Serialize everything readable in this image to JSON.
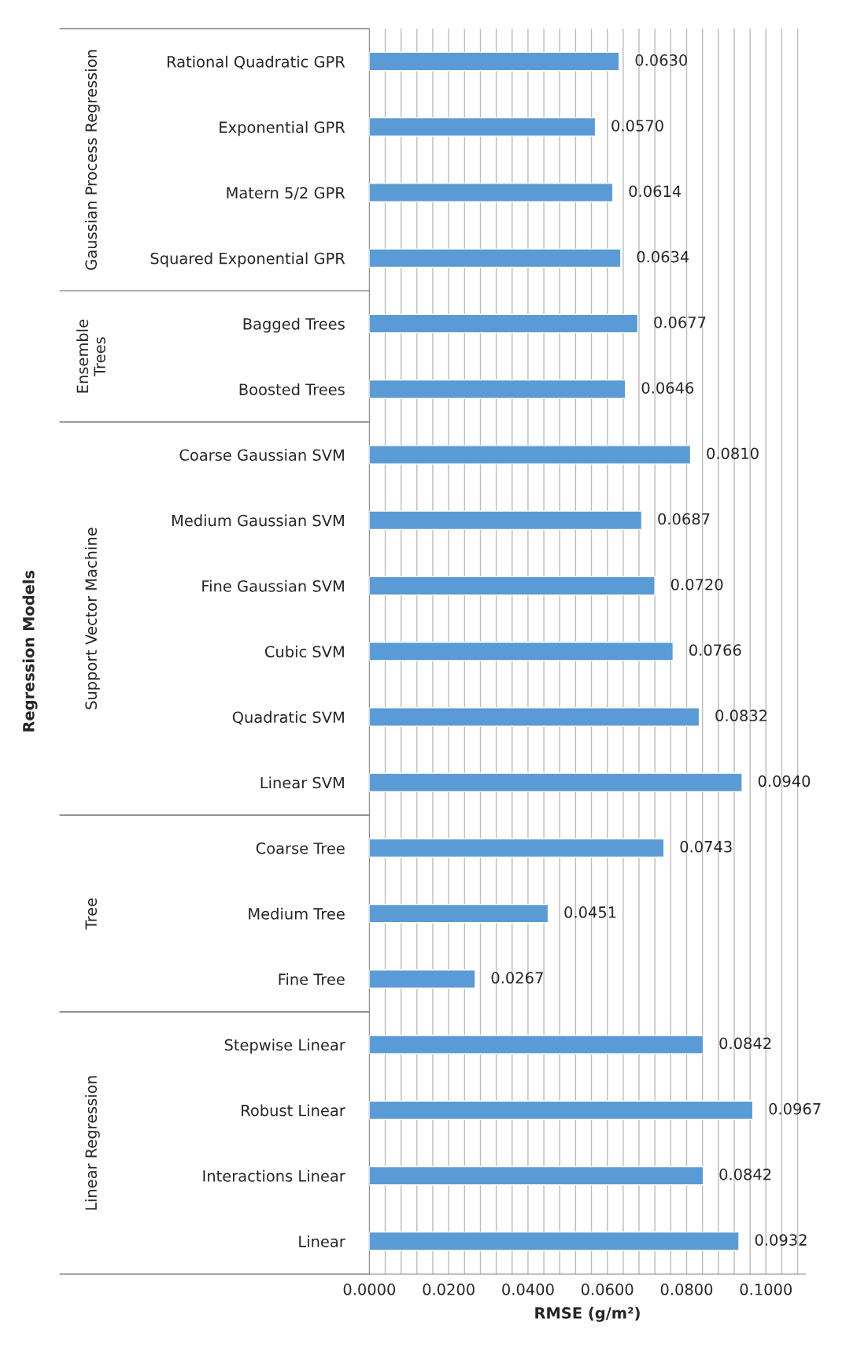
{
  "chart_data": {
    "type": "bar",
    "orientation": "horizontal",
    "xlabel": "RMSE (g/m²)",
    "annotations": [
      "Regression Models",
      "Gaussian Process Regression",
      "Ensemble\nTrees",
      "Support Vector Machine",
      "Tree",
      "Linear Regression"
    ],
    "categories": [
      "Rational Quadratic GPR",
      "Exponential GPR",
      "Matern 5/2 GPR",
      "Squared Exponential GPR",
      "Bagged Trees",
      "Boosted Trees",
      "Coarse Gaussian SVM",
      "Medium Gaussian SVM",
      "Fine Gaussian SVM",
      "Cubic SVM",
      "Quadratic SVM",
      "Linear SVM",
      "Coarse Tree",
      "Medium Tree",
      "Fine Tree",
      "Stepwise Linear",
      "Robust Linear",
      "Interactions Linear",
      "Linear"
    ],
    "series": [
      {
        "color": "#5b9bd5",
        "values": [
          0.063,
          0.057,
          0.0614,
          0.0634,
          null,
          null,
          null,
          null,
          null,
          null,
          null,
          null,
          null,
          null,
          null,
          null,
          null,
          null,
          null
        ],
        "value_labels": [
          "0.0630",
          "0.0570",
          "0.0614",
          "0.0634",
          null,
          null,
          null,
          null,
          null,
          null,
          null,
          null,
          null,
          null,
          null,
          null,
          null,
          null,
          null
        ]
      },
      {
        "color": "#5b9bd5",
        "values": [
          null,
          null,
          null,
          null,
          0.0677,
          0.0646,
          null,
          null,
          null,
          null,
          null,
          null,
          null,
          null,
          null,
          null,
          null,
          null,
          null
        ],
        "value_labels": [
          null,
          null,
          null,
          null,
          "0.0677",
          "0.0646",
          null,
          null,
          null,
          null,
          null,
          null,
          null,
          null,
          null,
          null,
          null,
          null,
          null
        ]
      },
      {
        "color": "#5b9bd5",
        "values": [
          null,
          null,
          null,
          null,
          null,
          null,
          0.081,
          0.0687,
          0.072,
          0.0766,
          0.0832,
          0.094,
          null,
          null,
          null,
          null,
          null,
          null,
          null
        ],
        "value_labels": [
          null,
          null,
          null,
          null,
          null,
          null,
          "0.0810",
          "0.0687",
          "0.0720",
          "0.0766",
          "0.0832",
          "0.0940",
          null,
          null,
          null,
          null,
          null,
          null,
          null
        ]
      },
      {
        "color": "#5b9bd5",
        "values": [
          null,
          null,
          null,
          null,
          null,
          null,
          null,
          null,
          null,
          null,
          null,
          null,
          0.0743,
          0.0451,
          0.0267,
          null,
          null,
          null,
          null
        ],
        "value_labels": [
          null,
          null,
          null,
          null,
          null,
          null,
          null,
          null,
          null,
          null,
          null,
          null,
          "0.0743",
          "0.0451",
          "0.0267",
          null,
          null,
          null,
          null
        ]
      },
      {
        "color": "#5b9bd5",
        "values": [
          null,
          null,
          null,
          null,
          null,
          null,
          null,
          null,
          null,
          null,
          null,
          null,
          null,
          null,
          null,
          0.0842,
          0.0967,
          0.0842,
          0.0932
        ],
        "value_labels": [
          null,
          null,
          null,
          null,
          null,
          null,
          null,
          null,
          null,
          null,
          null,
          null,
          null,
          null,
          null,
          "0.0842",
          "0.0967",
          "0.0842",
          "0.0932"
        ]
      }
    ],
    "xlim": [
      0,
      0.11
    ],
    "xticks": [
      {
        "value": 0,
        "label": "0.0000"
      },
      {
        "value": 0.004,
        "label": null
      },
      {
        "value": 0.008,
        "label": null
      },
      {
        "value": 0.012,
        "label": null
      },
      {
        "value": 0.016,
        "label": null
      },
      {
        "value": 0.02,
        "label": "0.0200"
      },
      {
        "value": 0.024,
        "label": null
      },
      {
        "value": 0.028,
        "label": null
      },
      {
        "value": 0.032,
        "label": null
      },
      {
        "value": 0.036,
        "label": null
      },
      {
        "value": 0.04,
        "label": "0.0400"
      },
      {
        "value": 0.044,
        "label": null
      },
      {
        "value": 0.048,
        "label": null
      },
      {
        "value": 0.052,
        "label": null
      },
      {
        "value": 0.056,
        "label": null
      },
      {
        "value": 0.06,
        "label": "0.0600"
      },
      {
        "value": 0.064,
        "label": null
      },
      {
        "value": 0.068,
        "label": null
      },
      {
        "value": 0.072,
        "label": null
      },
      {
        "value": 0.076,
        "label": null
      },
      {
        "value": 0.08,
        "label": "0.0800"
      },
      {
        "value": 0.084,
        "label": null
      },
      {
        "value": 0.088,
        "label": null
      },
      {
        "value": 0.092,
        "label": null
      },
      {
        "value": 0.096,
        "label": null
      },
      {
        "value": 0.1,
        "label": "0.1000"
      },
      {
        "value": 0.104,
        "label": null
      },
      {
        "value": 0.108,
        "label": null
      }
    ],
    "grid": "x",
    "legend": false
  }
}
